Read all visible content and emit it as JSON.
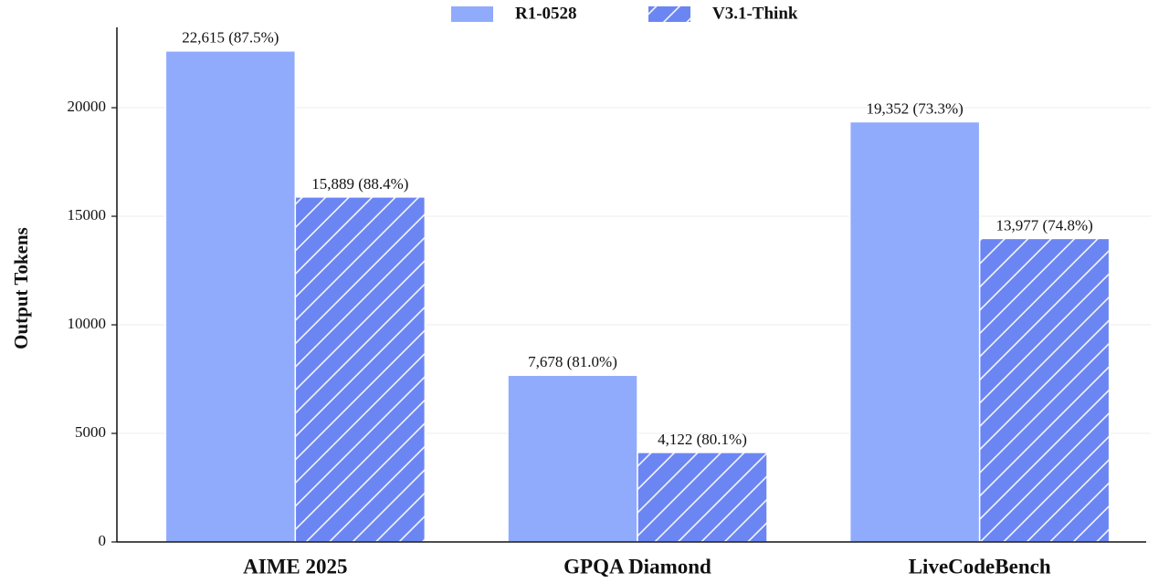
{
  "chart_data": {
    "type": "bar",
    "y_label": "Output Tokens",
    "categories": [
      "AIME 2025",
      "GPQA Diamond",
      "LiveCodeBench"
    ],
    "series": [
      {
        "name": "R1-0528",
        "color": "#90abfc",
        "values": [
          22615,
          7678,
          19352
        ],
        "value_labels": [
          "22,615 (87.5%)",
          "7,678 (81.0%)",
          "19,352 (73.3%)"
        ]
      },
      {
        "name": "V3.1-Think",
        "color": "#6b85f2",
        "hatch": true,
        "values": [
          15889,
          4122,
          13977
        ],
        "value_labels": [
          "15,889 (88.4%)",
          "4,122 (80.1%)",
          "13,977 (74.8%)"
        ]
      }
    ],
    "ylim": [
      0,
      23700
    ],
    "yticks": [
      0,
      5000,
      10000,
      15000,
      20000
    ],
    "grid": true,
    "legend": "top"
  }
}
